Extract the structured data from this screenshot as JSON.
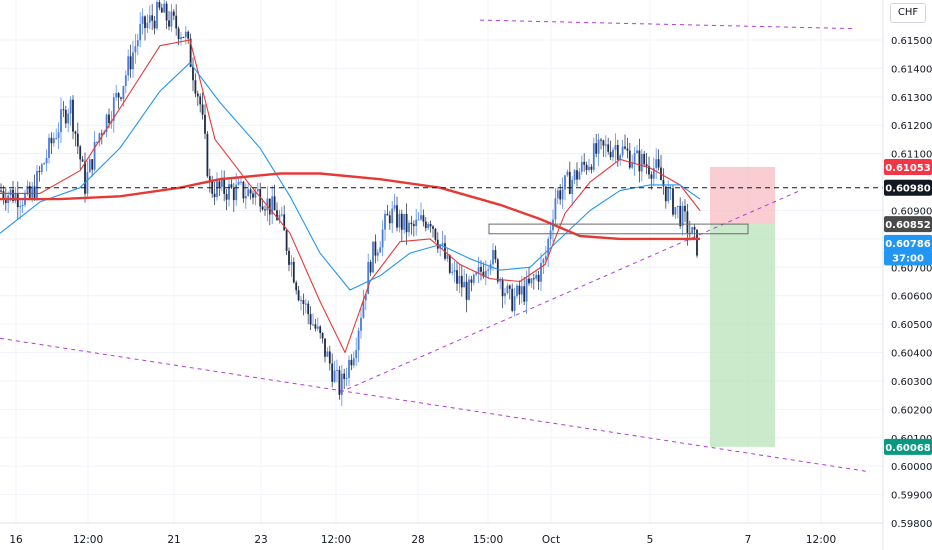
{
  "chart_data": {
    "type": "candlestick",
    "title": "",
    "currency": "CHF",
    "y_range": [
      0.5975,
      0.616
    ],
    "y_ticks": [
      0.615,
      0.614,
      0.613,
      0.612,
      0.611,
      0.609,
      0.608,
      0.607,
      0.606,
      0.605,
      0.604,
      0.603,
      0.602,
      0.601,
      0.6,
      0.599,
      0.598
    ],
    "y_tick_labels": [
      "0.61500",
      "0.61400",
      "0.61300",
      "0.61200",
      "0.61100",
      "0.60900",
      "0.60800",
      "0.60700",
      "0.60600",
      "0.60500",
      "0.60400",
      "0.60300",
      "0.60200",
      "0.60100",
      "0.60000",
      "0.59900",
      "0.59800"
    ],
    "x_ticks": [
      "16",
      "12:00",
      "21",
      "23",
      "12:00",
      "28",
      "15:00",
      "Oct",
      "5",
      "7",
      "12:00"
    ],
    "price_path": [
      [
        0,
        0.6097
      ],
      [
        30,
        0.6094
      ],
      [
        55,
        0.6117
      ],
      [
        70,
        0.6128
      ],
      [
        85,
        0.6099
      ],
      [
        100,
        0.6118
      ],
      [
        120,
        0.6132
      ],
      [
        140,
        0.6153
      ],
      [
        160,
        0.616
      ],
      [
        185,
        0.6152
      ],
      [
        200,
        0.6128
      ],
      [
        210,
        0.6098
      ],
      [
        230,
        0.6097
      ],
      [
        260,
        0.6096
      ],
      [
        280,
        0.6087
      ],
      [
        300,
        0.606
      ],
      [
        320,
        0.6045
      ],
      [
        340,
        0.6027
      ],
      [
        355,
        0.6043
      ],
      [
        370,
        0.6072
      ],
      [
        390,
        0.6089
      ],
      [
        410,
        0.6083
      ],
      [
        430,
        0.6088
      ],
      [
        450,
        0.6068
      ],
      [
        470,
        0.6061
      ],
      [
        490,
        0.6075
      ],
      [
        510,
        0.6058
      ],
      [
        530,
        0.6063
      ],
      [
        545,
        0.6072
      ],
      [
        555,
        0.6095
      ],
      [
        575,
        0.6102
      ],
      [
        595,
        0.611
      ],
      [
        615,
        0.6113
      ],
      [
        635,
        0.6108
      ],
      [
        655,
        0.6105
      ],
      [
        670,
        0.6094
      ],
      [
        685,
        0.6086
      ],
      [
        698,
        0.6077
      ]
    ],
    "series": [
      {
        "name": "",
        "color": "#e53935",
        "values": [
          [
            0,
            0.6096
          ],
          [
            40,
            0.6096
          ],
          [
            80,
            0.6104
          ],
          [
            120,
            0.6126
          ],
          [
            160,
            0.6148
          ],
          [
            190,
            0.615
          ],
          [
            215,
            0.6115
          ],
          [
            250,
            0.6099
          ],
          [
            290,
            0.6082
          ],
          [
            320,
            0.6058
          ],
          [
            345,
            0.604
          ],
          [
            370,
            0.6065
          ],
          [
            400,
            0.6079
          ],
          [
            430,
            0.608
          ],
          [
            460,
            0.6071
          ],
          [
            490,
            0.6066
          ],
          [
            520,
            0.6065
          ],
          [
            545,
            0.6071
          ],
          [
            565,
            0.6089
          ],
          [
            590,
            0.61
          ],
          [
            620,
            0.6108
          ],
          [
            650,
            0.6105
          ],
          [
            680,
            0.6099
          ],
          [
            700,
            0.609
          ]
        ]
      },
      {
        "name": "",
        "color": "#2196f3",
        "values": [
          [
            0,
            0.6082
          ],
          [
            40,
            0.6093
          ],
          [
            80,
            0.6098
          ],
          [
            120,
            0.6112
          ],
          [
            160,
            0.6132
          ],
          [
            190,
            0.6142
          ],
          [
            220,
            0.6128
          ],
          [
            260,
            0.6112
          ],
          [
            290,
            0.6095
          ],
          [
            320,
            0.6075
          ],
          [
            350,
            0.6062
          ],
          [
            380,
            0.6067
          ],
          [
            410,
            0.6075
          ],
          [
            440,
            0.6078
          ],
          [
            470,
            0.6073
          ],
          [
            500,
            0.6069
          ],
          [
            530,
            0.607
          ],
          [
            560,
            0.608
          ],
          [
            590,
            0.609
          ],
          [
            620,
            0.6097
          ],
          [
            650,
            0.6099
          ],
          [
            680,
            0.6099
          ],
          [
            700,
            0.6094
          ]
        ]
      },
      {
        "name": "",
        "color": "#e53935",
        "width": 2.4,
        "values": [
          [
            0,
            0.6094
          ],
          [
            60,
            0.6094
          ],
          [
            120,
            0.6095
          ],
          [
            180,
            0.6098
          ],
          [
            220,
            0.6101
          ],
          [
            280,
            0.6103
          ],
          [
            320,
            0.6103
          ],
          [
            380,
            0.6101
          ],
          [
            440,
            0.6098
          ],
          [
            500,
            0.6092
          ],
          [
            540,
            0.6087
          ],
          [
            580,
            0.6081
          ],
          [
            620,
            0.608
          ],
          [
            660,
            0.608
          ],
          [
            700,
            0.608
          ]
        ]
      }
    ],
    "horizontal_line": 0.6098,
    "trendlines": [
      {
        "from": [
          480,
          0.6157
        ],
        "to": [
          855,
          0.6154
        ]
      },
      {
        "from": [
          0,
          0.6045
        ],
        "to": [
          870,
          0.5998
        ]
      },
      {
        "from": [
          340,
          0.6026
        ],
        "to": [
          800,
          0.6097
        ]
      }
    ],
    "zone_box": {
      "from": [
        489,
        0.60852
      ],
      "to": [
        748,
        0.60818
      ]
    },
    "position": {
      "x_from": 710,
      "x_to": 775,
      "entry": 0.60852,
      "stop": 0.61053,
      "target": 0.60068
    },
    "price_tags": [
      {
        "label": "0.61053",
        "value": 0.61053,
        "color": "#f23645"
      },
      {
        "label": "0.60980",
        "value": 0.6098,
        "color": "#131722"
      },
      {
        "label": "0.60852",
        "value": 0.60852,
        "color": "#4a4a4a"
      },
      {
        "label": "0.60786",
        "value": 0.60786,
        "color": "#2196f3"
      },
      {
        "label": "37:00",
        "value": 0.60735,
        "color": "#2196f3",
        "light": true
      },
      {
        "label": "0.60068",
        "value": 0.60068,
        "color": "#089981"
      }
    ]
  }
}
